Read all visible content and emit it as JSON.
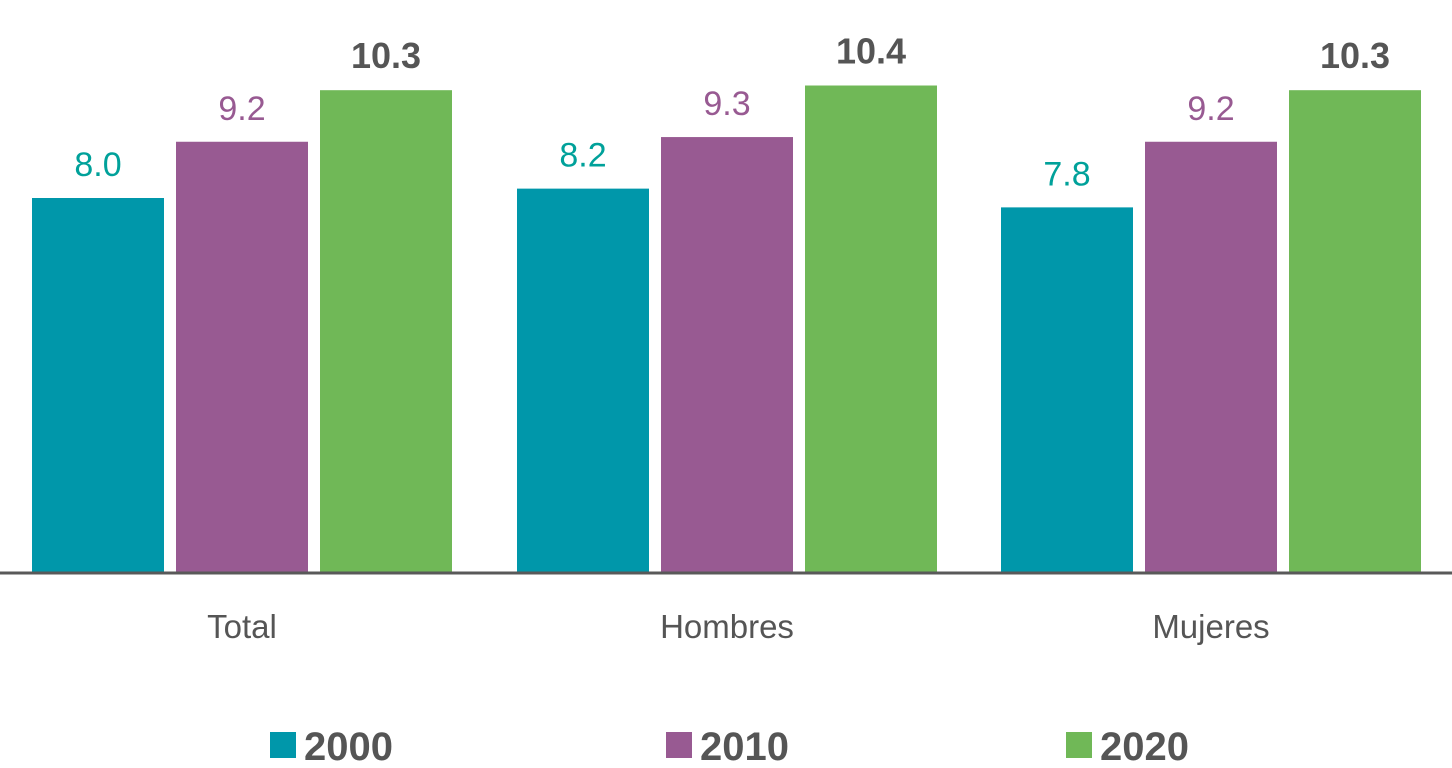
{
  "chart_data": {
    "type": "bar",
    "categories": [
      "Total",
      "Hombres",
      "Mujeres"
    ],
    "series": [
      {
        "name": "2000",
        "values": [
          8.0,
          8.2,
          7.8
        ],
        "labels": [
          "8.0",
          "8.2",
          "7.8"
        ],
        "color": "#0097AA",
        "label_color": "#00A19A",
        "bold": false
      },
      {
        "name": "2010",
        "values": [
          9.2,
          9.3,
          9.2
        ],
        "labels": [
          "9.2",
          "9.3",
          "9.2"
        ],
        "color": "#985A92",
        "label_color": "#985A92",
        "bold": false
      },
      {
        "name": "2020",
        "values": [
          10.3,
          10.4,
          10.3
        ],
        "labels": [
          "10.3",
          "10.4",
          "10.3"
        ],
        "color": "#70B857",
        "label_color": "#555555",
        "bold": true
      }
    ],
    "ylim": [
      0,
      11.2
    ],
    "grid": false,
    "legend_position": "bottom",
    "axis_color": "#595959"
  }
}
